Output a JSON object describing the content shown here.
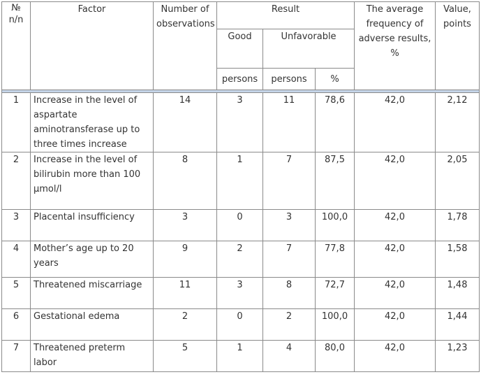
{
  "header": {
    "no": "№\nn/n",
    "factor": "Factor",
    "observations": "Number of observations",
    "result": "Result",
    "good": "Good",
    "unfavorable": "Unfavorable",
    "persons_good": "persons",
    "persons_unfav": "persons",
    "percent": "%",
    "avg_freq": "The average frequency of adverse results, %",
    "value": "Value, points"
  },
  "rows": [
    {
      "no": "1",
      "factor": "Increase in the level of aspartate aminotransferase up to three times increase",
      "obs": "14",
      "good": "3",
      "unfav": "11",
      "pct": "78,6",
      "avg": "42,0",
      "value": "2,12"
    },
    {
      "no": "2",
      "factor": "Increase in the level of bilirubin more than 100 μmol/l",
      "obs": "8",
      "good": "1",
      "unfav": "7",
      "pct": "87,5",
      "avg": "42,0",
      "value": "2,05"
    },
    {
      "no": "3",
      "factor": "Placental insufficiency",
      "obs": "3",
      "good": "0",
      "unfav": "3",
      "pct": "100,0",
      "avg": "42,0",
      "value": "1,78"
    },
    {
      "no": "4",
      "factor": "Mother’s age up to 20 years",
      "obs": "9",
      "good": "2",
      "unfav": "7",
      "pct": "77,8",
      "avg": "42,0",
      "value": "1,58"
    },
    {
      "no": "5",
      "factor": "Threatened miscarriage",
      "obs": "11",
      "good": "3",
      "unfav": "8",
      "pct": "72,7",
      "avg": "42,0",
      "value": "1,48"
    },
    {
      "no": "6",
      "factor": "Gestational edema",
      "obs": "2",
      "good": "0",
      "unfav": "2",
      "pct": "100,0",
      "avg": "42,0",
      "value": "1,44"
    },
    {
      "no": "7",
      "factor": "Threatened preterm labor",
      "obs": "5",
      "good": "1",
      "unfav": "4",
      "pct": "80,0",
      "avg": "42,0",
      "value": "1,23"
    }
  ]
}
